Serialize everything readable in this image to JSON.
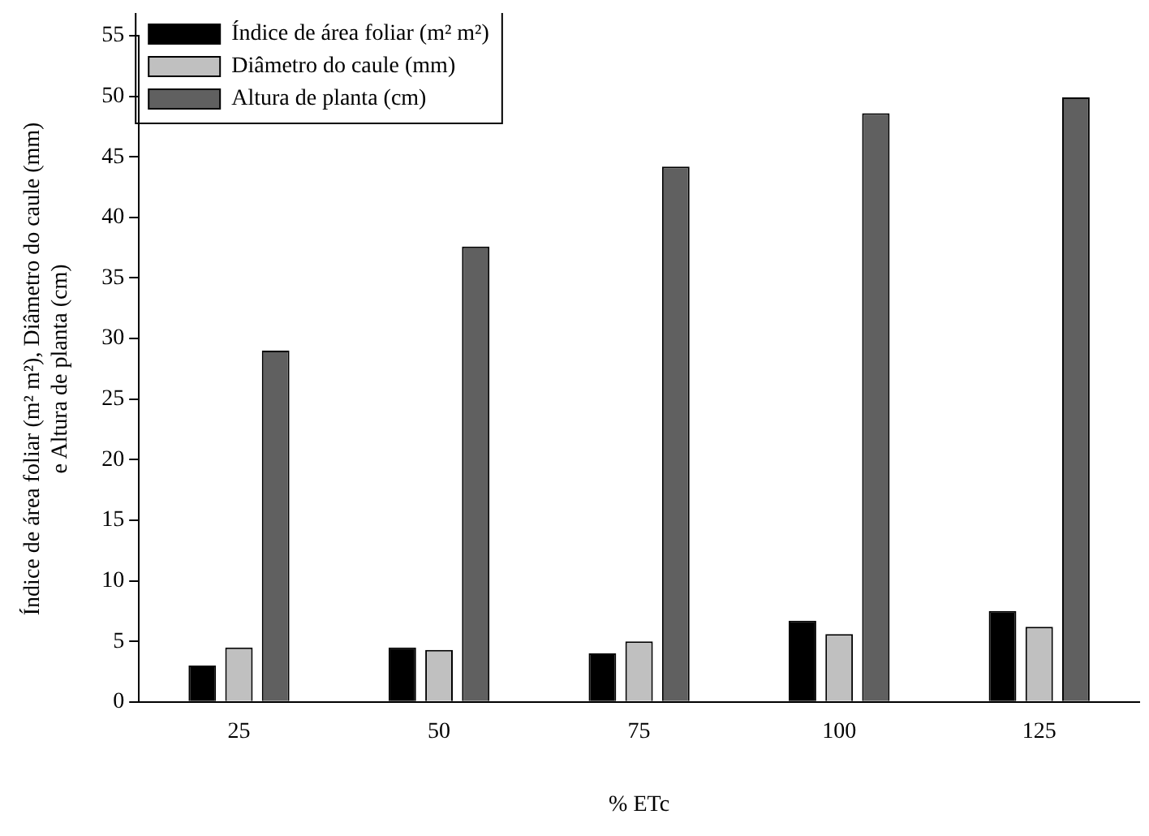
{
  "chart_data": {
    "type": "bar",
    "xlabel": "% ETc",
    "ylabel": "Índice de área foliar (m² m²), Diâmetro do caule (mm)\ne Altura de planta (cm)",
    "categories": [
      "25",
      "50",
      "75",
      "100",
      "125"
    ],
    "series": [
      {
        "name": "Índice de área foliar (m² m²)",
        "color": "#000000",
        "values": [
          3.0,
          4.5,
          4.0,
          6.7,
          7.5
        ]
      },
      {
        "name": "Diâmetro do caule (mm)",
        "color": "#c0c0c0",
        "values": [
          4.5,
          4.3,
          5.0,
          5.6,
          6.2
        ]
      },
      {
        "name": "Altura de planta (cm)",
        "color": "#606060",
        "values": [
          29.0,
          37.6,
          44.2,
          48.6,
          49.9
        ]
      }
    ],
    "ylim": [
      0,
      55
    ],
    "yticks": [
      0,
      5,
      10,
      15,
      20,
      25,
      30,
      35,
      40,
      45,
      50,
      55
    ],
    "grid": false,
    "legend": "top left"
  }
}
